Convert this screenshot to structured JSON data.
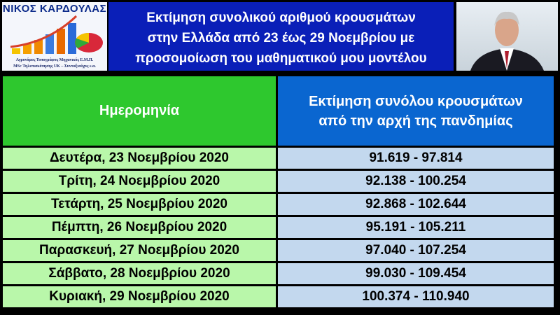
{
  "logo": {
    "name": "ΝΙΚΟΣ ΚΑΡΔΟΥΛΑΣ",
    "line1": "Αγρονόμος Τοπογράφος Μηχανικός Ε.Μ.Π.",
    "line2": "MSc Τηλεπισκόπησης UK – Συνταξιούχος ε.α."
  },
  "title": {
    "line1": "Εκτίμηση συνολικού αριθμού κρουσμάτων",
    "line2": "στην Ελλάδα από 23 έως 29 Νοεμβρίου με",
    "line3": "προσομοίωση του μαθηματικού μου μοντέλου"
  },
  "table": {
    "headers": {
      "date": "Ημερομηνία",
      "estimate_line1": "Εκτίμηση συνόλου κρουσμάτων",
      "estimate_line2": "από την αρχή της πανδημίας"
    },
    "rows": [
      {
        "date": "Δευτέρα, 23  Νοεμβρίου 2020",
        "estimate": "91.619 - 97.814"
      },
      {
        "date": "Τρίτη, 24  Νοεμβρίου 2020",
        "estimate": "92.138 - 100.254"
      },
      {
        "date": "Τετάρτη, 25  Νοεμβρίου 2020",
        "estimate": "92.868 - 102.644"
      },
      {
        "date": "Πέμπτη, 26  Νοεμβρίου 2020",
        "estimate": "95.191 - 105.211"
      },
      {
        "date": "Παρασκευή, 27  Νοεμβρίου 2020",
        "estimate": "97.040 - 107.254"
      },
      {
        "date": "Σάββατο, 28  Νοεμβρίου 2020",
        "estimate": "99.030 - 109.454"
      },
      {
        "date": "Κυριακή, 29  Νοεμβρίου 2020",
        "estimate": "100.374 - 110.940"
      }
    ]
  }
}
